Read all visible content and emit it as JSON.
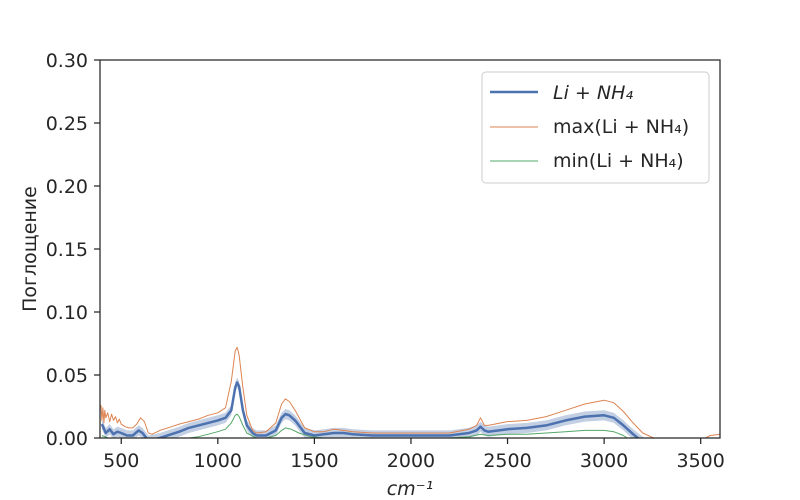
{
  "chart_data": {
    "type": "line",
    "xlabel": "cm⁻¹",
    "ylabel": "Поглощение",
    "xlim": [
      390,
      3600
    ],
    "ylim": [
      0,
      0.3
    ],
    "xticks": [
      500,
      1000,
      1500,
      2000,
      2500,
      3000,
      3500
    ],
    "yticks": [
      0.0,
      0.05,
      0.1,
      0.15,
      0.2,
      0.25,
      0.3
    ],
    "xtick_labels": [
      "500",
      "1000",
      "1500",
      "2000",
      "2500",
      "3000",
      "3500"
    ],
    "ytick_labels": [
      "0.00",
      "0.05",
      "0.10",
      "0.15",
      "0.20",
      "0.25",
      "0.30"
    ],
    "grid": false,
    "legend_position": "top-right",
    "series": [
      {
        "name": "Li + NH₄",
        "color": "#4c72b0",
        "band_color": "#c3cfe3",
        "points": [
          [
            400,
            0.011
          ],
          [
            420,
            0.004
          ],
          [
            440,
            0.007
          ],
          [
            460,
            0.003
          ],
          [
            480,
            0.005
          ],
          [
            500,
            0.004
          ],
          [
            530,
            0.002
          ],
          [
            560,
            0.002
          ],
          [
            590,
            0.006
          ],
          [
            610,
            0.004
          ],
          [
            640,
            -0.002
          ],
          [
            700,
            0.0
          ],
          [
            760,
            0.003
          ],
          [
            800,
            0.005
          ],
          [
            850,
            0.008
          ],
          [
            900,
            0.01
          ],
          [
            950,
            0.012
          ],
          [
            1000,
            0.014
          ],
          [
            1040,
            0.016
          ],
          [
            1070,
            0.022
          ],
          [
            1090,
            0.04
          ],
          [
            1100,
            0.044
          ],
          [
            1110,
            0.041
          ],
          [
            1130,
            0.022
          ],
          [
            1150,
            0.01
          ],
          [
            1180,
            0.004
          ],
          [
            1200,
            0.002
          ],
          [
            1250,
            0.002
          ],
          [
            1300,
            0.006
          ],
          [
            1330,
            0.016
          ],
          [
            1350,
            0.019
          ],
          [
            1370,
            0.018
          ],
          [
            1400,
            0.014
          ],
          [
            1450,
            0.004
          ],
          [
            1500,
            0.002
          ],
          [
            1550,
            0.003
          ],
          [
            1600,
            0.004
          ],
          [
            1650,
            0.004
          ],
          [
            1700,
            0.003
          ],
          [
            1800,
            0.002
          ],
          [
            1900,
            0.002
          ],
          [
            2000,
            0.002
          ],
          [
            2100,
            0.002
          ],
          [
            2200,
            0.002
          ],
          [
            2300,
            0.004
          ],
          [
            2340,
            0.006
          ],
          [
            2360,
            0.009
          ],
          [
            2380,
            0.006
          ],
          [
            2400,
            0.005
          ],
          [
            2500,
            0.007
          ],
          [
            2600,
            0.008
          ],
          [
            2700,
            0.01
          ],
          [
            2800,
            0.014
          ],
          [
            2900,
            0.017
          ],
          [
            3000,
            0.018
          ],
          [
            3050,
            0.016
          ],
          [
            3100,
            0.01
          ],
          [
            3150,
            0.003
          ],
          [
            3200,
            -0.003
          ],
          [
            3300,
            -0.01
          ],
          [
            3400,
            -0.01
          ],
          [
            3500,
            -0.008
          ],
          [
            3600,
            -0.004
          ]
        ]
      },
      {
        "name": "max(Li + NH₄)",
        "color": "#dd8452",
        "points": [
          [
            395,
            0.026
          ],
          [
            400,
            0.014
          ],
          [
            405,
            0.024
          ],
          [
            410,
            0.012
          ],
          [
            415,
            0.022
          ],
          [
            420,
            0.016
          ],
          [
            430,
            0.02
          ],
          [
            440,
            0.013
          ],
          [
            450,
            0.019
          ],
          [
            460,
            0.014
          ],
          [
            470,
            0.017
          ],
          [
            480,
            0.012
          ],
          [
            490,
            0.015
          ],
          [
            500,
            0.011
          ],
          [
            520,
            0.009
          ],
          [
            540,
            0.008
          ],
          [
            560,
            0.008
          ],
          [
            580,
            0.011
          ],
          [
            600,
            0.016
          ],
          [
            620,
            0.013
          ],
          [
            640,
            0.004
          ],
          [
            660,
            0.003
          ],
          [
            700,
            0.006
          ],
          [
            760,
            0.009
          ],
          [
            800,
            0.011
          ],
          [
            850,
            0.013
          ],
          [
            900,
            0.015
          ],
          [
            950,
            0.018
          ],
          [
            1000,
            0.02
          ],
          [
            1040,
            0.024
          ],
          [
            1070,
            0.045
          ],
          [
            1090,
            0.069
          ],
          [
            1100,
            0.072
          ],
          [
            1110,
            0.066
          ],
          [
            1130,
            0.04
          ],
          [
            1150,
            0.018
          ],
          [
            1180,
            0.006
          ],
          [
            1200,
            0.004
          ],
          [
            1250,
            0.005
          ],
          [
            1300,
            0.012
          ],
          [
            1330,
            0.027
          ],
          [
            1350,
            0.031
          ],
          [
            1370,
            0.029
          ],
          [
            1400,
            0.022
          ],
          [
            1450,
            0.008
          ],
          [
            1500,
            0.005
          ],
          [
            1550,
            0.005
          ],
          [
            1600,
            0.007
          ],
          [
            1650,
            0.006
          ],
          [
            1700,
            0.005
          ],
          [
            1800,
            0.004
          ],
          [
            1900,
            0.004
          ],
          [
            2000,
            0.004
          ],
          [
            2100,
            0.004
          ],
          [
            2200,
            0.004
          ],
          [
            2300,
            0.007
          ],
          [
            2340,
            0.01
          ],
          [
            2360,
            0.016
          ],
          [
            2380,
            0.01
          ],
          [
            2400,
            0.01
          ],
          [
            2500,
            0.013
          ],
          [
            2600,
            0.014
          ],
          [
            2700,
            0.017
          ],
          [
            2800,
            0.022
          ],
          [
            2900,
            0.027
          ],
          [
            3000,
            0.03
          ],
          [
            3050,
            0.028
          ],
          [
            3100,
            0.021
          ],
          [
            3150,
            0.012
          ],
          [
            3200,
            0.004
          ],
          [
            3300,
            -0.003
          ],
          [
            3400,
            -0.003
          ],
          [
            3500,
            -0.002
          ],
          [
            3550,
            0.002
          ],
          [
            3600,
            0.003
          ]
        ]
      },
      {
        "name": "min(Li + NH₄)",
        "color": "#55a868",
        "points": [
          [
            400,
            0.002
          ],
          [
            430,
            0.0
          ],
          [
            460,
            -0.001
          ],
          [
            500,
            -0.002
          ],
          [
            600,
            -0.003
          ],
          [
            700,
            -0.002
          ],
          [
            800,
            -0.001
          ],
          [
            900,
            0.001
          ],
          [
            950,
            0.003
          ],
          [
            1000,
            0.005
          ],
          [
            1040,
            0.007
          ],
          [
            1070,
            0.012
          ],
          [
            1090,
            0.018
          ],
          [
            1100,
            0.019
          ],
          [
            1110,
            0.017
          ],
          [
            1130,
            0.01
          ],
          [
            1150,
            0.004
          ],
          [
            1200,
            0.0
          ],
          [
            1250,
            0.0
          ],
          [
            1300,
            0.002
          ],
          [
            1330,
            0.006
          ],
          [
            1350,
            0.008
          ],
          [
            1380,
            0.007
          ],
          [
            1420,
            0.004
          ],
          [
            1480,
            0.001
          ],
          [
            1550,
            0.0
          ],
          [
            1650,
            0.0
          ],
          [
            1800,
            0.0
          ],
          [
            2000,
            0.0
          ],
          [
            2200,
            0.0
          ],
          [
            2300,
            0.001
          ],
          [
            2360,
            0.003
          ],
          [
            2400,
            0.002
          ],
          [
            2500,
            0.003
          ],
          [
            2600,
            0.003
          ],
          [
            2700,
            0.004
          ],
          [
            2800,
            0.005
          ],
          [
            2900,
            0.006
          ],
          [
            3000,
            0.006
          ],
          [
            3050,
            0.005
          ],
          [
            3100,
            0.002
          ],
          [
            3150,
            -0.003
          ],
          [
            3300,
            -0.012
          ],
          [
            3600,
            -0.012
          ]
        ]
      }
    ]
  }
}
